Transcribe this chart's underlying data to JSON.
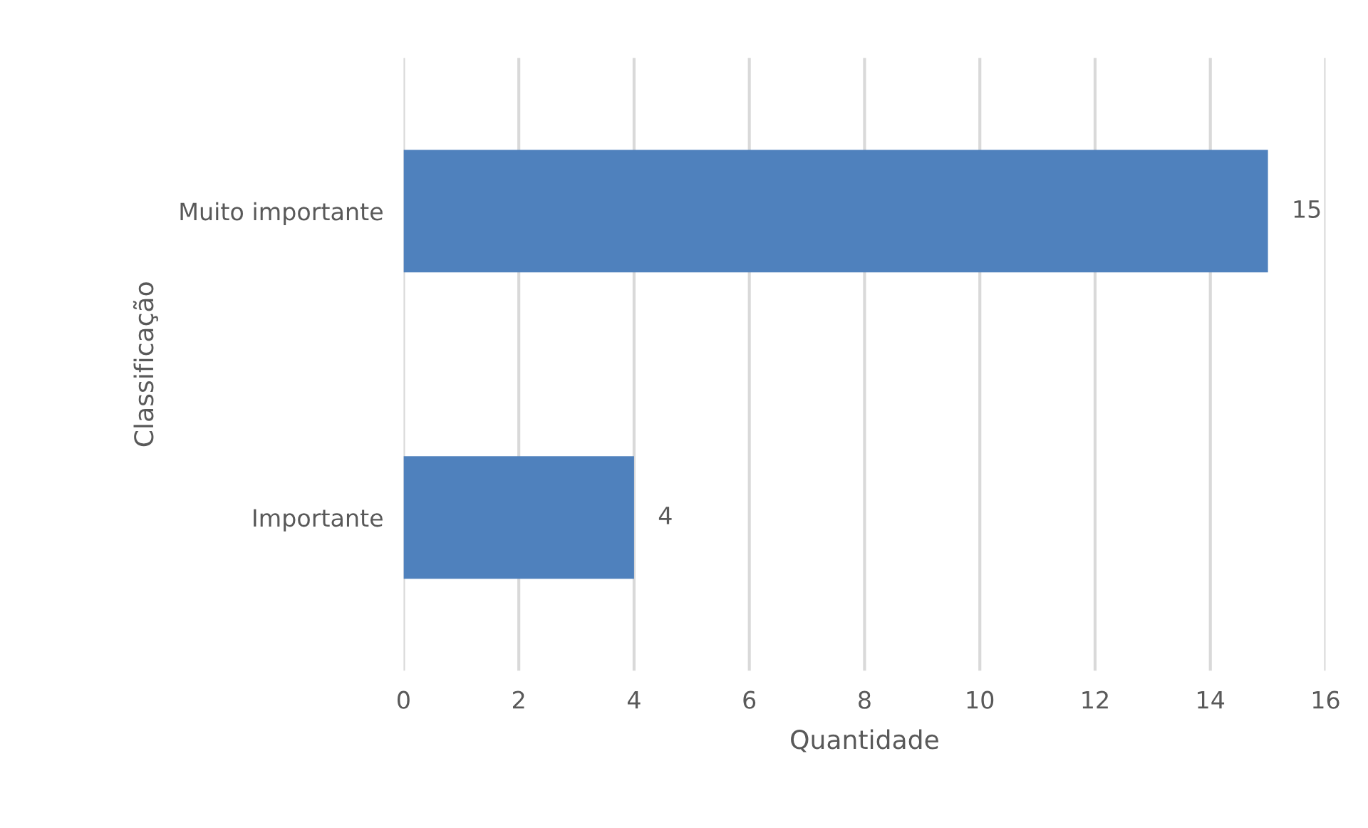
{
  "chart_data": {
    "type": "bar",
    "orientation": "horizontal",
    "categories": [
      "Muito importante",
      "Importante"
    ],
    "values": [
      15,
      4
    ],
    "color": "#4f81bd",
    "xlim": [
      0,
      16
    ],
    "xticks": [
      0,
      2,
      4,
      6,
      8,
      10,
      12,
      14,
      16
    ],
    "xlabel": "Quantidade",
    "ylabel": "Classificação",
    "grid": "x",
    "data_labels": true
  }
}
